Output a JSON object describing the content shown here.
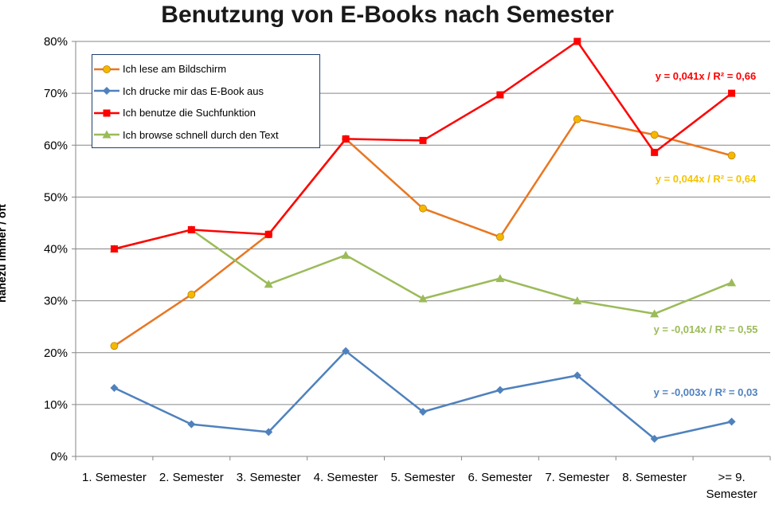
{
  "chart_data": {
    "type": "line",
    "title": "Benutzung von E-Books nach Semester",
    "ylabel": "nahezu immer / oft",
    "xlabel": "",
    "ylim": [
      0,
      80
    ],
    "yticks": [
      "0%",
      "10%",
      "20%",
      "30%",
      "40%",
      "50%",
      "60%",
      "70%",
      "80%"
    ],
    "categories": [
      "1. Semester",
      "2. Semester",
      "3. Semester",
      "4. Semester",
      "5. Semester",
      "6. Semester",
      "7. Semester",
      "8. Semester",
      ">= 9. Semester"
    ],
    "category_lines": [
      [
        "1. Semester"
      ],
      [
        "2. Semester"
      ],
      [
        "3. Semester"
      ],
      [
        "4. Semester"
      ],
      [
        "5. Semester"
      ],
      [
        "6. Semester"
      ],
      [
        "7. Semester"
      ],
      [
        "8. Semester"
      ],
      [
        ">= 9.",
        "Semester"
      ]
    ],
    "grid": true,
    "legend_position": "top-left",
    "series": [
      {
        "name": "Ich lese am Bildschirm",
        "color": "#e87722",
        "marker": "circle",
        "marker_color": "#f5b800",
        "values": [
          21.3,
          31.2,
          42.8,
          61.2,
          47.8,
          42.3,
          65.0,
          62.0,
          58.0
        ],
        "trend": "y = 0,044x / R² = 0,64",
        "trend_color": "#f5c400"
      },
      {
        "name": "Ich drucke mir das E-Book aus",
        "color": "#4f81bd",
        "marker": "diamond",
        "marker_color": "#4f81bd",
        "values": [
          13.2,
          6.2,
          4.7,
          20.3,
          8.6,
          12.8,
          15.6,
          3.4,
          6.7
        ],
        "trend": "y = -0,003x / R² = 0,03",
        "trend_color": "#4f81bd"
      },
      {
        "name": "Ich benutze die Suchfunktion",
        "color": "#ff0000",
        "marker": "square",
        "marker_color": "#ff0000",
        "values": [
          40.0,
          43.7,
          42.8,
          61.2,
          60.9,
          69.7,
          80.0,
          58.6,
          70.0
        ],
        "trend": "y = 0,041x / R² = 0,66",
        "trend_color": "#ff0000"
      },
      {
        "name": "Ich browse schnell durch den Text",
        "color": "#9bbb59",
        "marker": "triangle",
        "marker_color": "#9bbb59",
        "values": [
          40.0,
          43.7,
          33.2,
          38.8,
          30.4,
          34.3,
          30.0,
          27.5,
          33.5
        ],
        "trend": "y = -0,014x / R² = 0,55",
        "trend_color": "#9bbb59"
      }
    ]
  }
}
